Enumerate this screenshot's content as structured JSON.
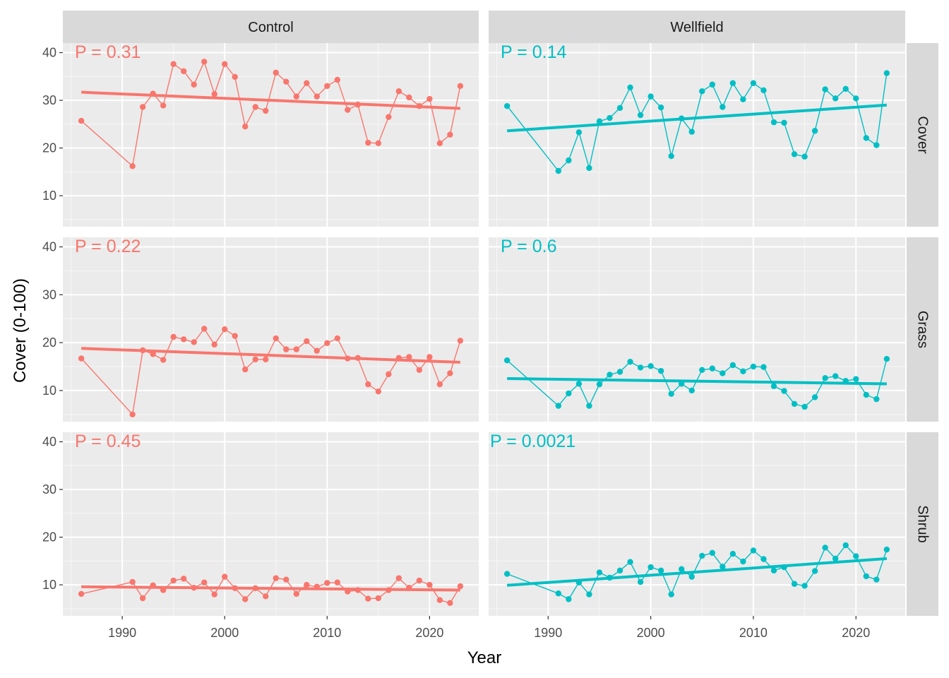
{
  "chart_data": {
    "type": "line",
    "xlabel": "Year",
    "ylabel": "Cover (0-100)",
    "xlim": [
      1984.2,
      2024.8
    ],
    "ylim": [
      3.5,
      42
    ],
    "x_ticks": [
      1990,
      2000,
      2010,
      2020
    ],
    "y_ticks": [
      10,
      20,
      30,
      40
    ],
    "column_facets": [
      "Control",
      "Wellfield"
    ],
    "row_facets": [
      "Cover",
      "Grass",
      "Shrub"
    ],
    "colors": {
      "Control": "#F8766D",
      "Wellfield": "#00BFC4"
    },
    "x": [
      1986,
      1991,
      1992,
      1993,
      1994,
      1995,
      1996,
      1997,
      1998,
      1999,
      2000,
      2001,
      2002,
      2003,
      2004,
      2005,
      2006,
      2007,
      2008,
      2009,
      2010,
      2011,
      2012,
      2013,
      2014,
      2015,
      2016,
      2017,
      2018,
      2019,
      2020,
      2021,
      2022,
      2023
    ],
    "panels": [
      {
        "col": "Control",
        "row": "Cover",
        "p_label": "P = 0.31",
        "values": [
          25.7,
          16.2,
          28.6,
          31.4,
          28.9,
          37.6,
          36.1,
          33.3,
          38.1,
          31.3,
          37.6,
          34.9,
          24.5,
          28.6,
          27.8,
          35.8,
          33.9,
          30.8,
          33.6,
          30.8,
          33.0,
          34.3,
          28.0,
          29.1,
          21.1,
          21.0,
          26.5,
          31.9,
          30.6,
          28.8,
          30.3,
          21.0,
          22.8,
          33.0
        ],
        "trend": [
          31.7,
          28.3
        ]
      },
      {
        "col": "Wellfield",
        "row": "Cover",
        "p_label": "P = 0.14",
        "values": [
          28.8,
          15.2,
          17.4,
          23.3,
          15.8,
          25.6,
          26.3,
          28.4,
          32.7,
          26.9,
          30.8,
          28.5,
          18.3,
          26.2,
          23.4,
          31.9,
          33.3,
          28.6,
          33.6,
          30.2,
          33.6,
          32.1,
          25.4,
          25.3,
          18.7,
          18.2,
          23.6,
          32.3,
          30.4,
          32.4,
          30.4,
          22.1,
          20.6,
          35.7
        ],
        "trend": [
          23.6,
          29.0
        ]
      },
      {
        "col": "Control",
        "row": "Grass",
        "p_label": "P = 0.22",
        "values": [
          16.7,
          5.0,
          18.4,
          17.6,
          16.4,
          21.2,
          20.7,
          20.1,
          22.9,
          19.6,
          22.8,
          21.4,
          14.4,
          16.5,
          16.5,
          20.9,
          18.6,
          18.6,
          20.3,
          18.3,
          19.9,
          20.9,
          16.7,
          16.8,
          11.3,
          9.8,
          13.4,
          16.8,
          17.0,
          14.3,
          17.0,
          11.3,
          13.6,
          20.4
        ],
        "trend": [
          18.8,
          15.9
        ]
      },
      {
        "col": "Wellfield",
        "row": "Grass",
        "p_label": "P = 0.6",
        "values": [
          16.3,
          6.8,
          9.4,
          11.4,
          6.8,
          11.3,
          13.3,
          13.9,
          16.0,
          14.8,
          15.1,
          14.1,
          9.3,
          11.4,
          10.0,
          14.3,
          14.6,
          13.6,
          15.3,
          14.0,
          15.0,
          14.9,
          10.9,
          9.9,
          7.2,
          6.6,
          8.6,
          12.6,
          13.0,
          12.0,
          12.4,
          9.1,
          8.2,
          16.6
        ],
        "trend": [
          12.5,
          11.4
        ]
      },
      {
        "col": "Control",
        "row": "Shrub",
        "p_label": "P = 0.45",
        "values": [
          8.1,
          10.6,
          7.2,
          9.9,
          8.9,
          10.9,
          11.3,
          9.4,
          10.5,
          8.0,
          11.7,
          9.3,
          7.0,
          9.3,
          7.6,
          11.4,
          11.1,
          8.1,
          10.0,
          9.6,
          10.4,
          10.5,
          8.6,
          8.9,
          7.1,
          7.2,
          8.9,
          11.4,
          9.4,
          10.9,
          10.0,
          6.8,
          6.2,
          9.7
        ],
        "trend": [
          9.6,
          8.9
        ]
      },
      {
        "col": "Wellfield",
        "row": "Shrub",
        "p_label": "P = 0.0021",
        "values": [
          12.3,
          8.2,
          7.0,
          10.5,
          8.0,
          12.6,
          11.5,
          13.0,
          14.8,
          10.6,
          13.7,
          13.0,
          8.0,
          13.3,
          11.7,
          16.1,
          16.7,
          13.8,
          16.5,
          14.9,
          17.2,
          15.4,
          13.0,
          13.7,
          10.2,
          9.8,
          12.9,
          17.8,
          15.5,
          18.3,
          16.0,
          11.8,
          11.1,
          17.4
        ],
        "trend": [
          9.9,
          15.5
        ]
      }
    ]
  }
}
